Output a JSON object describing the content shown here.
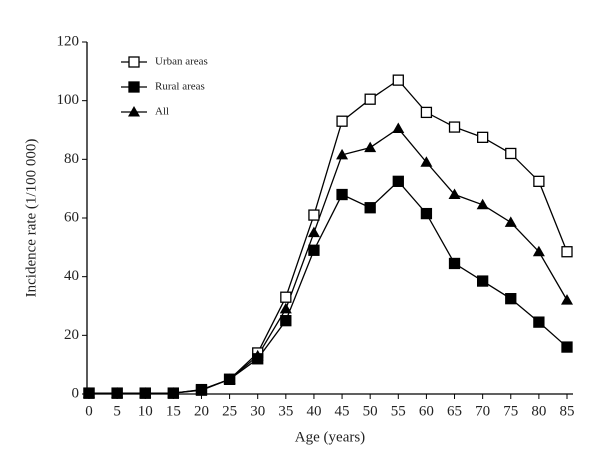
{
  "chart_data": {
    "type": "line",
    "x_label": "Age (years)",
    "y_label": "Incidence rate (1/100 000)",
    "x": [
      0,
      5,
      10,
      15,
      20,
      25,
      30,
      35,
      40,
      45,
      50,
      55,
      60,
      65,
      70,
      75,
      80,
      85
    ],
    "series": [
      {
        "name": "Urban areas",
        "color": "#000000",
        "marker": "open-square",
        "values": [
          0.3,
          0.3,
          0.3,
          0.3,
          1.5,
          5,
          14,
          33,
          61,
          93,
          100.5,
          107,
          96,
          91,
          87.5,
          82,
          72.5,
          48.5
        ]
      },
      {
        "name": "Rural areas",
        "color": "#000000",
        "marker": "filled-square",
        "values": [
          0.3,
          0.3,
          0.3,
          0.3,
          1.3,
          5,
          12,
          25,
          49,
          68,
          63.5,
          72.5,
          61.5,
          44.5,
          38.5,
          32.5,
          24.5,
          16
        ]
      },
      {
        "name": "All",
        "color": "#000000",
        "marker": "filled-triangle",
        "values": [
          0.3,
          0.3,
          0.3,
          0.3,
          1.4,
          5,
          13,
          29,
          55,
          81.5,
          84,
          90.5,
          79,
          68,
          64.5,
          58.5,
          48.5,
          32
        ]
      }
    ],
    "xlim": [
      0,
      85
    ],
    "xticks": [
      0,
      5,
      10,
      15,
      20,
      25,
      30,
      35,
      40,
      45,
      50,
      55,
      60,
      65,
      70,
      75,
      80,
      85
    ],
    "ylim": [
      0,
      120
    ],
    "yticks": [
      0,
      20,
      40,
      60,
      80,
      100,
      120
    ],
    "grid": false,
    "legend": "upper-left"
  }
}
